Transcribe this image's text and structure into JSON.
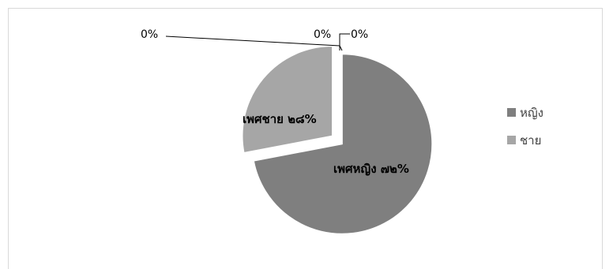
{
  "chart_data": {
    "type": "pie",
    "categories": [
      "หญิง",
      "ชาย",
      "",
      ""
    ],
    "values": [
      72,
      28,
      0,
      0
    ],
    "colors": [
      "#7f7f7f",
      "#a6a6a6",
      "#595959",
      "#bfbfbf"
    ],
    "data_labels": [
      "เพศหญิง ๗๒%",
      "เพศชาย ๒๘%",
      "0%",
      "0%"
    ],
    "extra_label": "0%",
    "exploded": true,
    "legend": {
      "placement": "right",
      "entries": [
        {
          "label": "หญิง",
          "color": "#7f7f7f"
        },
        {
          "label": "ชาย",
          "color": "#a6a6a6"
        }
      ]
    }
  }
}
